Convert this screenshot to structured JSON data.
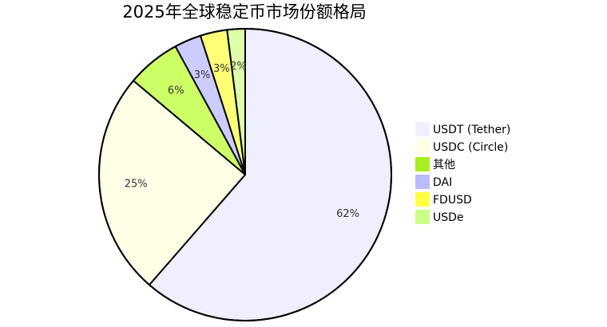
{
  "chart_data": {
    "type": "pie",
    "title": "2025年全球稳定币市场份额格局",
    "slices": [
      {
        "label": "USDT (Tether)",
        "value": 62,
        "display": "62%",
        "color": "#efefff"
      },
      {
        "label": "USDC (Circle)",
        "value": 25,
        "display": "25%",
        "color": "#ffffe8"
      },
      {
        "label": "其他",
        "value": 6,
        "display": "6%",
        "color": "#ccff66"
      },
      {
        "label": "DAI",
        "value": 3,
        "display": "3%",
        "color": "#ccccff"
      },
      {
        "label": "FDUSD",
        "value": 3,
        "display": "3%",
        "color": "#ffff77"
      },
      {
        "label": "USDe",
        "value": 2,
        "display": "2%",
        "color": "#ddffaa"
      }
    ],
    "legend_entries": [
      {
        "label": "USDT (Tether)",
        "color": "#efefff"
      },
      {
        "label": "USDC (Circle)",
        "color": "#ffffe8"
      },
      {
        "label": "其他",
        "color": "#aaee22"
      },
      {
        "label": "DAI",
        "color": "#bbbbff"
      },
      {
        "label": "FDUSD",
        "color": "#ffff44"
      },
      {
        "label": "USDe",
        "color": "#ccff88"
      }
    ],
    "legend_position": "right",
    "start_angle": "top",
    "direction": "clockwise"
  }
}
